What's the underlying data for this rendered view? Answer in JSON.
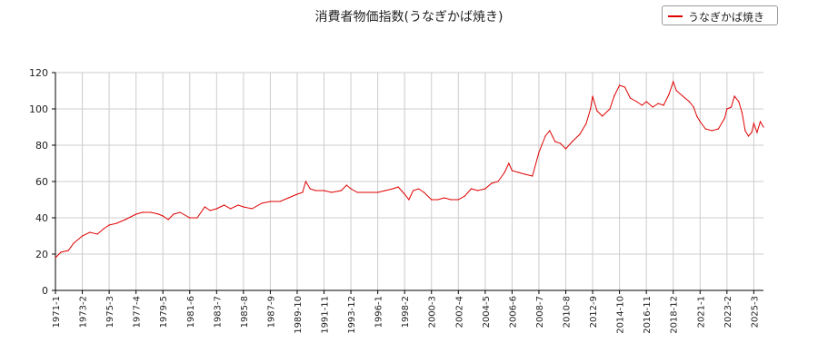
{
  "chart_data": {
    "type": "line",
    "title": "消費者物価指数(うなぎかば焼き)",
    "xlabel": "",
    "ylabel": "",
    "ylim": [
      0,
      120
    ],
    "yticks": [
      0,
      20,
      40,
      60,
      80,
      100,
      120
    ],
    "grid": true,
    "legend_position": "top-right",
    "x_tick_labels": [
      "1971-1",
      "1973-2",
      "1975-3",
      "1977-4",
      "1979-5",
      "1981-6",
      "1983-7",
      "1985-8",
      "1987-9",
      "1989-10",
      "1991-11",
      "1993-12",
      "1996-1",
      "1998-2",
      "2000-3",
      "2002-4",
      "2004-5",
      "2006-6",
      "2008-7",
      "2010-8",
      "2012-9",
      "2014-10",
      "2016-11",
      "2018-12",
      "2021-1",
      "2023-2",
      "2025-3"
    ],
    "series": [
      {
        "name": "うなぎかば焼き",
        "color": "#e00000",
        "points": [
          [
            "1971-1",
            18
          ],
          [
            "1971-6",
            21
          ],
          [
            "1972-1",
            22
          ],
          [
            "1972-6",
            26
          ],
          [
            "1973-2",
            30
          ],
          [
            "1973-9",
            32
          ],
          [
            "1974-4",
            31
          ],
          [
            "1974-10",
            34
          ],
          [
            "1975-3",
            36
          ],
          [
            "1975-10",
            37
          ],
          [
            "1976-6",
            39
          ],
          [
            "1977-4",
            42
          ],
          [
            "1977-10",
            43
          ],
          [
            "1978-6",
            43
          ],
          [
            "1979-1",
            42
          ],
          [
            "1979-5",
            41
          ],
          [
            "1979-10",
            39
          ],
          [
            "1980-3",
            42
          ],
          [
            "1980-9",
            43
          ],
          [
            "1981-6",
            40
          ],
          [
            "1982-1",
            40
          ],
          [
            "1982-8",
            46
          ],
          [
            "1983-1",
            44
          ],
          [
            "1983-7",
            45
          ],
          [
            "1984-2",
            47
          ],
          [
            "1984-8",
            45
          ],
          [
            "1985-3",
            47
          ],
          [
            "1985-8",
            46
          ],
          [
            "1986-4",
            45
          ],
          [
            "1987-1",
            48
          ],
          [
            "1987-9",
            49
          ],
          [
            "1988-6",
            49
          ],
          [
            "1989-2",
            51
          ],
          [
            "1989-10",
            53
          ],
          [
            "1990-3",
            54
          ],
          [
            "1990-6",
            60
          ],
          [
            "1990-10",
            56
          ],
          [
            "1991-3",
            55
          ],
          [
            "1991-11",
            55
          ],
          [
            "1992-6",
            54
          ],
          [
            "1993-3",
            55
          ],
          [
            "1993-8",
            58
          ],
          [
            "1993-12",
            56
          ],
          [
            "1994-6",
            54
          ],
          [
            "1995-1",
            54
          ],
          [
            "1995-7",
            54
          ],
          [
            "1996-1",
            54
          ],
          [
            "1996-8",
            55
          ],
          [
            "1997-3",
            56
          ],
          [
            "1997-8",
            57
          ],
          [
            "1998-2",
            53
          ],
          [
            "1998-6",
            50
          ],
          [
            "1998-10",
            55
          ],
          [
            "1999-3",
            56
          ],
          [
            "1999-8",
            54
          ],
          [
            "2000-3",
            50
          ],
          [
            "2000-9",
            50
          ],
          [
            "2001-3",
            51
          ],
          [
            "2001-9",
            50
          ],
          [
            "2002-4",
            50
          ],
          [
            "2002-10",
            52
          ],
          [
            "2003-4",
            56
          ],
          [
            "2003-10",
            55
          ],
          [
            "2004-5",
            56
          ],
          [
            "2004-11",
            59
          ],
          [
            "2005-5",
            60
          ],
          [
            "2005-11",
            65
          ],
          [
            "2006-3",
            70
          ],
          [
            "2006-6",
            66
          ],
          [
            "2006-12",
            65
          ],
          [
            "2007-6",
            64
          ],
          [
            "2008-1",
            63
          ],
          [
            "2008-7",
            76
          ],
          [
            "2009-1",
            85
          ],
          [
            "2009-5",
            88
          ],
          [
            "2009-10",
            82
          ],
          [
            "2010-3",
            81
          ],
          [
            "2010-8",
            78
          ],
          [
            "2011-2",
            82
          ],
          [
            "2011-9",
            86
          ],
          [
            "2012-3",
            92
          ],
          [
            "2012-7",
            100
          ],
          [
            "2012-9",
            107
          ],
          [
            "2013-1",
            99
          ],
          [
            "2013-6",
            96
          ],
          [
            "2014-1",
            100
          ],
          [
            "2014-5",
            107
          ],
          [
            "2014-10",
            113
          ],
          [
            "2015-3",
            112
          ],
          [
            "2015-8",
            106
          ],
          [
            "2016-2",
            104
          ],
          [
            "2016-7",
            102
          ],
          [
            "2016-11",
            104
          ],
          [
            "2017-5",
            101
          ],
          [
            "2017-10",
            103
          ],
          [
            "2018-3",
            102
          ],
          [
            "2018-8",
            108
          ],
          [
            "2018-12",
            115
          ],
          [
            "2019-3",
            110
          ],
          [
            "2019-9",
            107
          ],
          [
            "2020-3",
            104
          ],
          [
            "2020-7",
            101
          ],
          [
            "2020-10",
            96
          ],
          [
            "2021-1",
            93
          ],
          [
            "2021-6",
            89
          ],
          [
            "2021-12",
            88
          ],
          [
            "2022-6",
            89
          ],
          [
            "2022-12",
            95
          ],
          [
            "2023-2",
            100
          ],
          [
            "2023-6",
            101
          ],
          [
            "2023-9",
            107
          ],
          [
            "2024-1",
            104
          ],
          [
            "2024-4",
            98
          ],
          [
            "2024-7",
            88
          ],
          [
            "2024-10",
            85
          ],
          [
            "2025-1",
            87
          ],
          [
            "2025-3",
            92
          ],
          [
            "2025-6",
            87
          ],
          [
            "2025-9",
            93
          ],
          [
            "2025-12",
            90
          ]
        ]
      }
    ]
  }
}
